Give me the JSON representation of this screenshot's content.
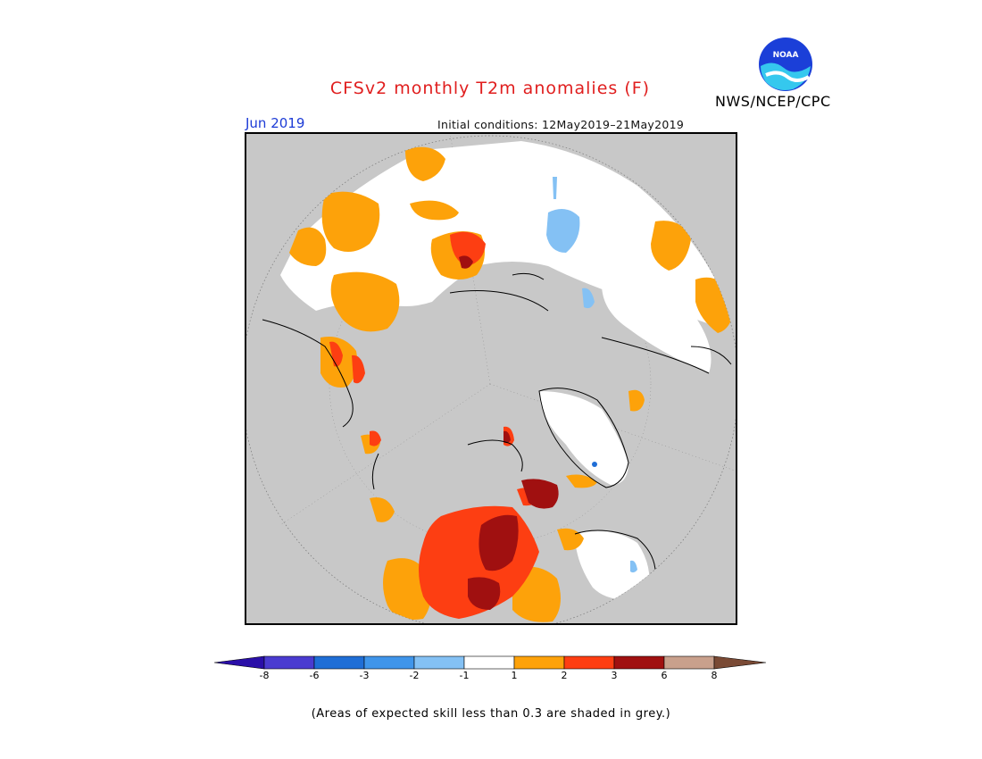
{
  "title": "CFSv2 monthly T2m anomalies (F)",
  "month": "Jun 2019",
  "initial_conditions": "Initial conditions: 12May2019–21May2019",
  "agency": "NWS/NCEP/CPC",
  "logo_text": "NOAA",
  "note": "(Areas of expected skill less than 0.3 are shaded in grey.)",
  "colorbar": {
    "ticks": [
      "-8",
      "-6",
      "-3",
      "-2",
      "-1",
      "1",
      "2",
      "3",
      "6",
      "8"
    ],
    "colors": [
      "#2a0fa8",
      "#4a3bd0",
      "#1f6ed6",
      "#3f95ea",
      "#84c1f4",
      "#ffffff",
      "#fda20a",
      "#fd3e12",
      "#a01010",
      "#c9a08c",
      "#7a4a35"
    ]
  },
  "colors": {
    "ocean_grey": "#c8c8c8",
    "no_signal": "#ffffff",
    "warm_1_2": "#fda20a",
    "warm_2_3": "#fd3e12",
    "warm_3_6": "#a01010",
    "cool_1_2": "#84c1f4"
  }
}
